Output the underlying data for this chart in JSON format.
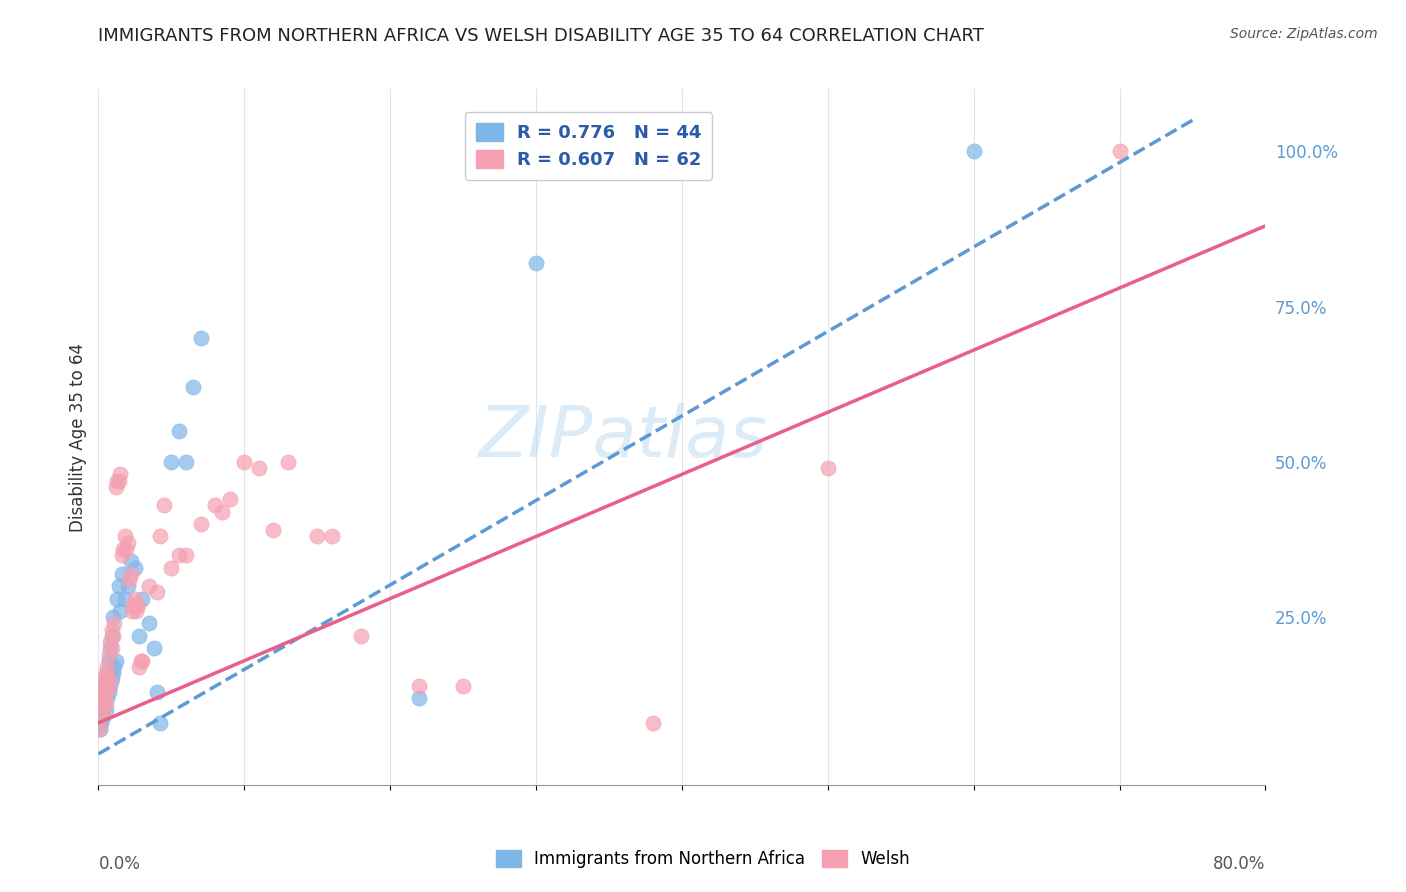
{
  "title": "IMMIGRANTS FROM NORTHERN AFRICA VS WELSH DISABILITY AGE 35 TO 64 CORRELATION CHART",
  "source": "Source: ZipAtlas.com",
  "ylabel": "Disability Age 35 to 64",
  "watermark": "ZIPatlas",
  "series1_label": "Immigrants from Northern Africa",
  "series1_color": "#7EB6E8",
  "series1_R": 0.776,
  "series1_N": 44,
  "series2_label": "Welsh",
  "series2_color": "#F4A0B0",
  "series2_R": 0.607,
  "series2_N": 62,
  "legend_text_color": "#2B5BA8",
  "right_axis_color": "#5B9BD5",
  "xlim": [
    0.0,
    0.8
  ],
  "ylim": [
    -0.02,
    1.1
  ],
  "blue_scatter": [
    [
      0.001,
      0.07
    ],
    [
      0.002,
      0.08
    ],
    [
      0.001,
      0.1
    ],
    [
      0.003,
      0.09
    ],
    [
      0.002,
      0.12
    ],
    [
      0.004,
      0.11
    ],
    [
      0.003,
      0.13
    ],
    [
      0.005,
      0.1
    ],
    [
      0.004,
      0.14
    ],
    [
      0.006,
      0.12
    ],
    [
      0.005,
      0.15
    ],
    [
      0.007,
      0.13
    ],
    [
      0.006,
      0.16
    ],
    [
      0.008,
      0.14
    ],
    [
      0.007,
      0.18
    ],
    [
      0.009,
      0.15
    ],
    [
      0.008,
      0.2
    ],
    [
      0.01,
      0.16
    ],
    [
      0.009,
      0.22
    ],
    [
      0.011,
      0.17
    ],
    [
      0.01,
      0.25
    ],
    [
      0.012,
      0.18
    ],
    [
      0.015,
      0.26
    ],
    [
      0.013,
      0.28
    ],
    [
      0.018,
      0.28
    ],
    [
      0.014,
      0.3
    ],
    [
      0.02,
      0.3
    ],
    [
      0.016,
      0.32
    ],
    [
      0.025,
      0.33
    ],
    [
      0.022,
      0.34
    ],
    [
      0.03,
      0.28
    ],
    [
      0.028,
      0.22
    ],
    [
      0.035,
      0.24
    ],
    [
      0.04,
      0.13
    ],
    [
      0.042,
      0.08
    ],
    [
      0.038,
      0.2
    ],
    [
      0.05,
      0.5
    ],
    [
      0.055,
      0.55
    ],
    [
      0.06,
      0.5
    ],
    [
      0.065,
      0.62
    ],
    [
      0.07,
      0.7
    ],
    [
      0.6,
      1.0
    ],
    [
      0.3,
      0.82
    ],
    [
      0.22,
      0.12
    ]
  ],
  "pink_scatter": [
    [
      0.001,
      0.07
    ],
    [
      0.002,
      0.09
    ],
    [
      0.001,
      0.11
    ],
    [
      0.003,
      0.1
    ],
    [
      0.002,
      0.13
    ],
    [
      0.004,
      0.12
    ],
    [
      0.003,
      0.14
    ],
    [
      0.005,
      0.11
    ],
    [
      0.004,
      0.15
    ],
    [
      0.006,
      0.13
    ],
    [
      0.005,
      0.16
    ],
    [
      0.007,
      0.14
    ],
    [
      0.006,
      0.17
    ],
    [
      0.008,
      0.15
    ],
    [
      0.007,
      0.19
    ],
    [
      0.009,
      0.2
    ],
    [
      0.008,
      0.21
    ],
    [
      0.01,
      0.22
    ],
    [
      0.009,
      0.23
    ],
    [
      0.011,
      0.24
    ],
    [
      0.012,
      0.46
    ],
    [
      0.013,
      0.47
    ],
    [
      0.014,
      0.47
    ],
    [
      0.015,
      0.48
    ],
    [
      0.016,
      0.35
    ],
    [
      0.017,
      0.36
    ],
    [
      0.018,
      0.38
    ],
    [
      0.019,
      0.36
    ],
    [
      0.02,
      0.37
    ],
    [
      0.021,
      0.31
    ],
    [
      0.022,
      0.32
    ],
    [
      0.023,
      0.26
    ],
    [
      0.024,
      0.27
    ],
    [
      0.025,
      0.28
    ],
    [
      0.026,
      0.26
    ],
    [
      0.027,
      0.27
    ],
    [
      0.028,
      0.17
    ],
    [
      0.029,
      0.18
    ],
    [
      0.03,
      0.18
    ],
    [
      0.035,
      0.3
    ],
    [
      0.04,
      0.29
    ],
    [
      0.042,
      0.38
    ],
    [
      0.045,
      0.43
    ],
    [
      0.05,
      0.33
    ],
    [
      0.055,
      0.35
    ],
    [
      0.06,
      0.35
    ],
    [
      0.07,
      0.4
    ],
    [
      0.08,
      0.43
    ],
    [
      0.085,
      0.42
    ],
    [
      0.09,
      0.44
    ],
    [
      0.1,
      0.5
    ],
    [
      0.11,
      0.49
    ],
    [
      0.12,
      0.39
    ],
    [
      0.13,
      0.5
    ],
    [
      0.15,
      0.38
    ],
    [
      0.16,
      0.38
    ],
    [
      0.18,
      0.22
    ],
    [
      0.5,
      0.49
    ],
    [
      0.7,
      1.0
    ],
    [
      0.38,
      0.08
    ],
    [
      0.22,
      0.14
    ],
    [
      0.25,
      0.14
    ]
  ]
}
